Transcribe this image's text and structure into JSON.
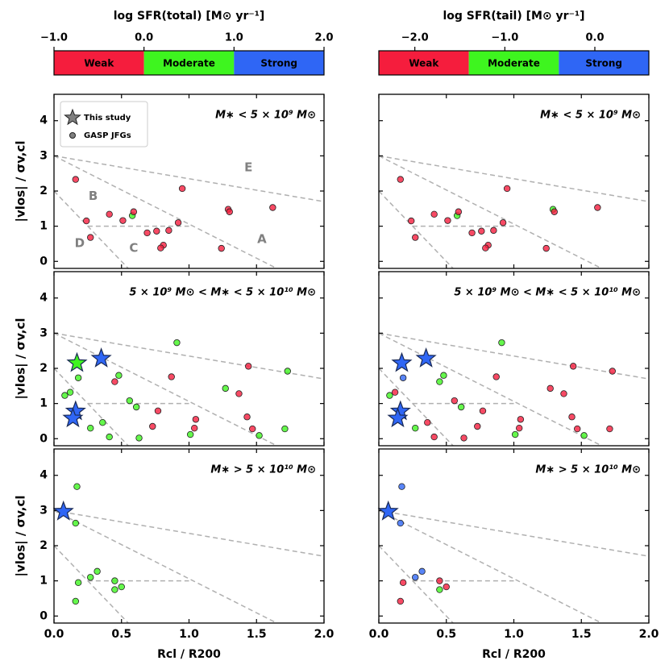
{
  "chart_data": {
    "type": "scatter",
    "xlabel": "Rcl / R200",
    "ylabel": "|vlos| / σv,cl",
    "xlim": [
      0,
      2
    ],
    "xticks": [
      {
        "value": 0,
        "label": "0.0"
      },
      {
        "value": 0.5,
        "label": "0.5"
      },
      {
        "value": 1,
        "label": "1.0"
      },
      {
        "value": 1.5,
        "label": "1.5"
      },
      {
        "value": 2,
        "label": "2.0"
      }
    ],
    "ylim": [
      -0.2,
      4.75
    ],
    "yticks": [
      0,
      1,
      2,
      3,
      4
    ],
    "colorbars": [
      {
        "title": "log SFR(total) [M⊙ yr⁻¹]",
        "xlim": [
          -1,
          2
        ],
        "ticks": [
          {
            "value": -1,
            "label": "−1.0"
          },
          {
            "value": 0,
            "label": "0.0"
          },
          {
            "value": 1,
            "label": "1.0"
          },
          {
            "value": 2,
            "label": "2.0"
          }
        ],
        "classes": [
          {
            "name": "Weak",
            "color": "#f51d3d",
            "range": [
              -1,
              0
            ]
          },
          {
            "name": "Moderate",
            "color": "#3ef51f",
            "range": [
              0,
              1
            ]
          },
          {
            "name": "Strong",
            "color": "#2f66f5",
            "range": [
              1,
              2
            ]
          }
        ]
      },
      {
        "title": "log SFR(tail) [M⊙ yr⁻¹]",
        "xlim": [
          -2.4,
          0.6
        ],
        "ticks": [
          {
            "value": -2,
            "label": "−2.0"
          },
          {
            "value": -1,
            "label": "−1.0"
          },
          {
            "value": 0,
            "label": "0.0"
          }
        ],
        "classes": [
          {
            "name": "Weak",
            "color": "#f51d3d",
            "range": [
              -2.4,
              -1.4
            ]
          },
          {
            "name": "Moderate",
            "color": "#3ef51f",
            "range": [
              -1.4,
              -0.4
            ]
          },
          {
            "name": "Strong",
            "color": "#2f66f5",
            "range": [
              -0.4,
              0.6
            ]
          }
        ]
      }
    ],
    "series": [
      {
        "name": "This study",
        "marker": "star",
        "color": "#808080"
      },
      {
        "name": "GASP JFGs",
        "marker": "circle",
        "color": "#808080"
      }
    ],
    "boundaries": [
      [
        [
          0,
          3
        ],
        [
          2,
          1.7
        ]
      ],
      [
        [
          0,
          3
        ],
        [
          1.65,
          -0.2
        ]
      ],
      [
        [
          0,
          2
        ],
        [
          0.55,
          -0.2
        ]
      ],
      [
        [
          0.25,
          1
        ],
        [
          1.0,
          1
        ]
      ]
    ],
    "region_labels": [
      {
        "text": "E",
        "x": 1.44,
        "y": 2.66
      },
      {
        "text": "B",
        "x": 0.29,
        "y": 1.85
      },
      {
        "text": "D",
        "x": 0.19,
        "y": 0.51
      },
      {
        "text": "C",
        "x": 0.59,
        "y": 0.37
      },
      {
        "text": "A",
        "x": 1.54,
        "y": 0.62
      }
    ],
    "panels": [
      {
        "title": "M∗ < 5 × 10⁹ M⊙",
        "points": [
          {
            "s": 1,
            "x": 0.16,
            "y": 2.33,
            "total": 0,
            "tail": 0
          },
          {
            "s": 1,
            "x": 0.24,
            "y": 1.15,
            "total": 0,
            "tail": 0
          },
          {
            "s": 1,
            "x": 0.41,
            "y": 1.34,
            "total": 0,
            "tail": 0
          },
          {
            "s": 1,
            "x": 0.27,
            "y": 0.68,
            "total": 0,
            "tail": 0
          },
          {
            "s": 1,
            "x": 0.51,
            "y": 1.16,
            "total": 0,
            "tail": 0
          },
          {
            "s": 1,
            "x": 0.58,
            "y": 1.3,
            "total": 1,
            "tail": 1
          },
          {
            "s": 1,
            "x": 0.59,
            "y": 1.41,
            "total": 0,
            "tail": 0
          },
          {
            "s": 1,
            "x": 0.69,
            "y": 0.81,
            "total": 0,
            "tail": 0
          },
          {
            "s": 1,
            "x": 0.76,
            "y": 0.86,
            "total": 0,
            "tail": 0
          },
          {
            "s": 1,
            "x": 0.81,
            "y": 0.46,
            "total": 0,
            "tail": 0
          },
          {
            "s": 1,
            "x": 0.79,
            "y": 0.38,
            "total": 0,
            "tail": 0
          },
          {
            "s": 1,
            "x": 0.85,
            "y": 0.88,
            "total": 0,
            "tail": 0
          },
          {
            "s": 1,
            "x": 0.92,
            "y": 1.1,
            "total": 0,
            "tail": 0
          },
          {
            "s": 1,
            "x": 0.95,
            "y": 2.07,
            "total": 0,
            "tail": 0
          },
          {
            "s": 1,
            "x": 1.29,
            "y": 1.48,
            "total": 0,
            "tail": 1
          },
          {
            "s": 1,
            "x": 1.3,
            "y": 1.41,
            "total": 0,
            "tail": 0
          },
          {
            "s": 1,
            "x": 1.24,
            "y": 0.37,
            "total": 0,
            "tail": 0
          },
          {
            "s": 1,
            "x": 1.62,
            "y": 1.53,
            "total": 0,
            "tail": 0
          }
        ]
      },
      {
        "title": "5 × 10⁹ M⊙ < M∗ < 5 × 10¹⁰ M⊙",
        "points": [
          {
            "s": 1,
            "x": 0.08,
            "y": 1.23,
            "total": 1,
            "tail": 1
          },
          {
            "s": 1,
            "x": 0.12,
            "y": 1.32,
            "total": 1,
            "tail": 0
          },
          {
            "s": 1,
            "x": 0.18,
            "y": 1.73,
            "total": 1,
            "tail": 2
          },
          {
            "s": 1,
            "x": 0.27,
            "y": 0.3,
            "total": 1,
            "tail": 1
          },
          {
            "s": 1,
            "x": 0.36,
            "y": 0.46,
            "total": 1,
            "tail": 0
          },
          {
            "s": 1,
            "x": 0.41,
            "y": 0.05,
            "total": 1,
            "tail": 0
          },
          {
            "s": 1,
            "x": 0.48,
            "y": 1.8,
            "total": 1,
            "tail": 1
          },
          {
            "s": 1,
            "x": 0.45,
            "y": 1.62,
            "total": 0,
            "tail": 1
          },
          {
            "s": 1,
            "x": 0.56,
            "y": 1.08,
            "total": 1,
            "tail": 0
          },
          {
            "s": 1,
            "x": 0.61,
            "y": 0.9,
            "total": 1,
            "tail": 1
          },
          {
            "s": 1,
            "x": 0.63,
            "y": 0.02,
            "total": 1,
            "tail": 0
          },
          {
            "s": 1,
            "x": 0.73,
            "y": 0.35,
            "total": 0,
            "tail": 0
          },
          {
            "s": 1,
            "x": 0.77,
            "y": 0.79,
            "total": 0,
            "tail": 0
          },
          {
            "s": 1,
            "x": 0.87,
            "y": 1.76,
            "total": 0,
            "tail": 0
          },
          {
            "s": 1,
            "x": 0.91,
            "y": 2.73,
            "total": 1,
            "tail": 1
          },
          {
            "s": 1,
            "x": 1.01,
            "y": 0.12,
            "total": 1,
            "tail": 1
          },
          {
            "s": 1,
            "x": 1.05,
            "y": 0.55,
            "total": 0,
            "tail": 0
          },
          {
            "s": 1,
            "x": 1.04,
            "y": 0.3,
            "total": 0,
            "tail": 0
          },
          {
            "s": 1,
            "x": 1.27,
            "y": 1.43,
            "total": 1,
            "tail": 0
          },
          {
            "s": 1,
            "x": 1.37,
            "y": 1.28,
            "total": 0,
            "tail": 0
          },
          {
            "s": 1,
            "x": 1.44,
            "y": 2.06,
            "total": 0,
            "tail": 0
          },
          {
            "s": 1,
            "x": 1.43,
            "y": 0.62,
            "total": 0,
            "tail": 0
          },
          {
            "s": 1,
            "x": 1.47,
            "y": 0.28,
            "total": 0,
            "tail": 0
          },
          {
            "s": 1,
            "x": 1.52,
            "y": 0.09,
            "total": 1,
            "tail": 1
          },
          {
            "s": 1,
            "x": 1.73,
            "y": 1.92,
            "total": 1,
            "tail": 0
          },
          {
            "s": 1,
            "x": 1.71,
            "y": 0.28,
            "total": 1,
            "tail": 0
          },
          {
            "s": 0,
            "x": 0.17,
            "y": 2.15,
            "total": 1,
            "tail": 2
          },
          {
            "s": 0,
            "x": 0.35,
            "y": 2.28,
            "total": 2,
            "tail": 2
          },
          {
            "s": 0,
            "x": 0.16,
            "y": 0.78,
            "total": 2,
            "tail": 2
          },
          {
            "s": 0,
            "x": 0.14,
            "y": 0.58,
            "total": 2,
            "tail": 2
          }
        ]
      },
      {
        "title": "M∗ > 5 × 10¹⁰ M⊙",
        "points": [
          {
            "s": 1,
            "x": 0.17,
            "y": 3.68,
            "total": 1,
            "tail": 2
          },
          {
            "s": 1,
            "x": 0.16,
            "y": 2.64,
            "total": 1,
            "tail": 2
          },
          {
            "s": 1,
            "x": 0.18,
            "y": 0.95,
            "total": 1,
            "tail": 0
          },
          {
            "s": 1,
            "x": 0.16,
            "y": 0.42,
            "total": 1,
            "tail": 0
          },
          {
            "s": 1,
            "x": 0.27,
            "y": 1.1,
            "total": 1,
            "tail": 2
          },
          {
            "s": 1,
            "x": 0.32,
            "y": 1.27,
            "total": 1,
            "tail": 2
          },
          {
            "s": 1,
            "x": 0.45,
            "y": 1.0,
            "total": 1,
            "tail": 0
          },
          {
            "s": 1,
            "x": 0.45,
            "y": 0.75,
            "total": 1,
            "tail": 1
          },
          {
            "s": 1,
            "x": 0.5,
            "y": 0.83,
            "total": 1,
            "tail": 0
          },
          {
            "s": 0,
            "x": 0.07,
            "y": 2.97,
            "total": 2,
            "tail": 2
          }
        ]
      }
    ]
  }
}
